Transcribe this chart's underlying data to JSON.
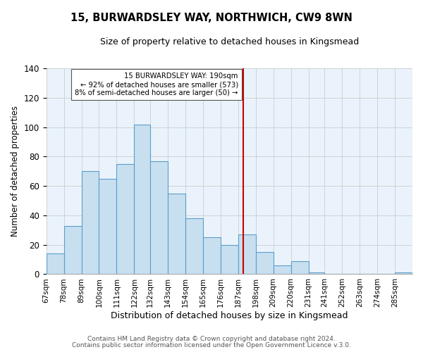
{
  "title": "15, BURWARDSLEY WAY, NORTHWICH, CW9 8WN",
  "subtitle": "Size of property relative to detached houses in Kingsmead",
  "xlabel": "Distribution of detached houses by size in Kingsmead",
  "ylabel": "Number of detached properties",
  "bar_labels": [
    "67sqm",
    "78sqm",
    "89sqm",
    "100sqm",
    "111sqm",
    "122sqm",
    "132sqm",
    "143sqm",
    "154sqm",
    "165sqm",
    "176sqm",
    "187sqm",
    "198sqm",
    "209sqm",
    "220sqm",
    "231sqm",
    "241sqm",
    "252sqm",
    "263sqm",
    "274sqm",
    "285sqm"
  ],
  "bar_values": [
    14,
    33,
    70,
    65,
    75,
    102,
    77,
    55,
    38,
    25,
    20,
    27,
    15,
    6,
    9,
    1,
    0,
    0,
    0,
    0,
    1
  ],
  "bin_edges": [
    67,
    78,
    89,
    100,
    111,
    122,
    132,
    143,
    154,
    165,
    176,
    187,
    198,
    209,
    220,
    231,
    241,
    252,
    263,
    274,
    285,
    296
  ],
  "bar_color": "#c8dff0",
  "bar_edgecolor": "#5a9ec9",
  "highlight_color": "#ddeeff",
  "property_line_x": 190,
  "ylim": [
    0,
    140
  ],
  "annotation_text": "15 BURWARDSLEY WAY: 190sqm\n← 92% of detached houses are smaller (573)\n8% of semi-detached houses are larger (50) →",
  "footer1": "Contains HM Land Registry data © Crown copyright and database right 2024.",
  "footer2": "Contains public sector information licensed under the Open Government Licence v.3.0."
}
